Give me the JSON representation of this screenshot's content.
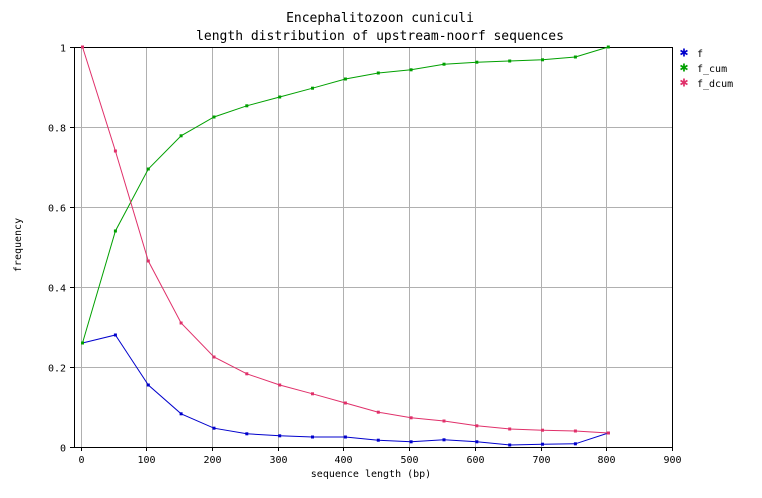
{
  "chart_data": {
    "type": "line",
    "title": "Encephalitozoon cuniculi",
    "subtitle": "length distribution of upstream-noorf sequences",
    "xlabel": "sequence length (bp)",
    "ylabel": "frequency",
    "xlim": [
      -10,
      900
    ],
    "ylim": [
      0,
      1
    ],
    "xticks": [
      0,
      100,
      200,
      300,
      400,
      500,
      600,
      700,
      800,
      900
    ],
    "yticks": [
      0,
      0.2,
      0.4,
      0.6,
      0.8,
      1
    ],
    "ytick_labels": [
      "0",
      "0.2",
      "0.4",
      "0.6",
      "0.8",
      "1"
    ],
    "grid": true,
    "legend_position": "right",
    "x": [
      3,
      53,
      103,
      153,
      203,
      253,
      303,
      353,
      403,
      453,
      503,
      553,
      603,
      653,
      703,
      753,
      803
    ],
    "series": [
      {
        "name": "f",
        "color": "#0000cc",
        "values": [
          0.26,
          0.28,
          0.155,
          0.083,
          0.047,
          0.033,
          0.028,
          0.025,
          0.025,
          0.017,
          0.013,
          0.018,
          0.013,
          0.005,
          0.007,
          0.008,
          0.035
        ]
      },
      {
        "name": "f_cum",
        "color": "#00a000",
        "values": [
          0.26,
          0.54,
          0.695,
          0.778,
          0.825,
          0.853,
          0.875,
          0.897,
          0.92,
          0.935,
          0.943,
          0.957,
          0.962,
          0.965,
          0.968,
          0.975,
          1.0
        ]
      },
      {
        "name": "f_dcum",
        "color": "#e0306a",
        "values": [
          1.0,
          0.74,
          0.465,
          0.31,
          0.225,
          0.183,
          0.155,
          0.133,
          0.11,
          0.087,
          0.073,
          0.065,
          0.053,
          0.045,
          0.042,
          0.04,
          0.035
        ]
      }
    ]
  }
}
